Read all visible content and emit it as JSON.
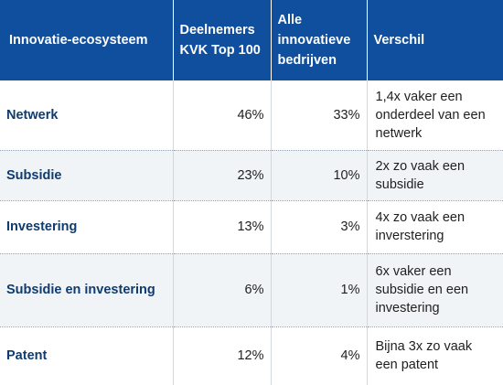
{
  "table": {
    "headers": [
      "Innovatie-ecosysteem",
      "Deelnemers KVK Top 100",
      "Alle innovatieve bedrijven",
      "Verschil"
    ],
    "rows": [
      {
        "name": "Netwerk",
        "kvk": "46%",
        "alle": "33%",
        "verschil": "1,4x vaker een onderdeel van een netwerk"
      },
      {
        "name": "Subsidie",
        "kvk": "23%",
        "alle": "10%",
        "verschil": "2x zo vaak een subsidie"
      },
      {
        "name": "Investering",
        "kvk": "13%",
        "alle": "3%",
        "verschil": "4x zo vaak een inverstering"
      },
      {
        "name": "Subsidie en investering",
        "kvk": "6%",
        "alle": "1%",
        "verschil": "6x vaker een subsidie en een investering"
      },
      {
        "name": "Patent",
        "kvk": "12%",
        "alle": "4%",
        "verschil": "Bijna 3x zo vaak een patent"
      }
    ]
  },
  "colors": {
    "header_bg": "#0f4f9e",
    "header_text": "#ffffff",
    "row_shade": "#f1f4f7",
    "name_text": "#0f3b6e"
  }
}
